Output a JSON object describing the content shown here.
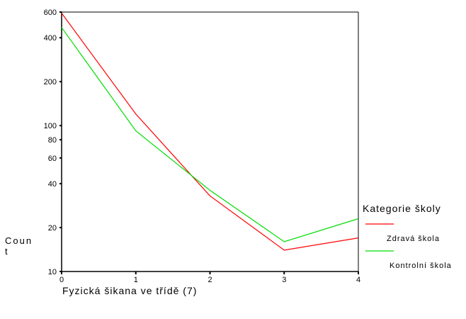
{
  "chart_data": {
    "type": "line",
    "xlabel": "Fyzická šikana ve třídě (7)",
    "ylabel": "Count",
    "y_scale": "log",
    "ylim": [
      10,
      600
    ],
    "xlim": [
      0,
      4
    ],
    "grid": false,
    "x": [
      0,
      1,
      2,
      3,
      4
    ],
    "x_ticks": [
      "0",
      "1",
      "2",
      "3",
      "4"
    ],
    "y_ticks": [
      10,
      20,
      40,
      60,
      80,
      100,
      200,
      400,
      600
    ],
    "legend": {
      "title": "Kategorie školy",
      "placement": "right"
    },
    "series": [
      {
        "name": "Zdravá škola",
        "color": "#ff0000",
        "values": [
          590,
          120,
          33,
          14,
          17
        ]
      },
      {
        "name": "Kontrolní škola",
        "color": "#00dd00",
        "values": [
          470,
          92,
          36,
          16,
          23
        ]
      }
    ]
  }
}
